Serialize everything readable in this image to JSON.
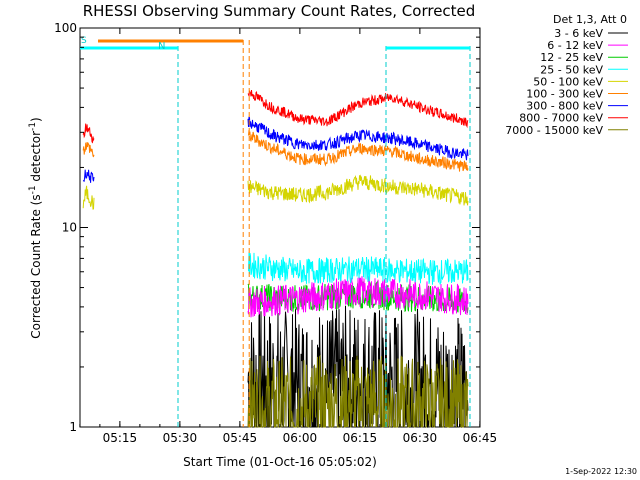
{
  "chart_data": {
    "type": "line",
    "title": "RHESSI Observing Summary Count Rates, Corrected",
    "xlabel": "Start Time (01-Oct-16 05:05:02)",
    "ylabel": "Corrected Count Rate (s",
    "ylabel_sup": "-1",
    "ylabel_mid": " detector",
    "ylabel_tail": ")",
    "y_scale": "log",
    "ylim": [
      1,
      100
    ],
    "xlim_minutes": [
      0,
      100
    ],
    "x_ticks": [
      {
        "label": "05:15",
        "minute": 9.97
      },
      {
        "label": "05:30",
        "minute": 24.97
      },
      {
        "label": "05:45",
        "minute": 39.97
      },
      {
        "label": "06:00",
        "minute": 54.97
      },
      {
        "label": "06:15",
        "minute": 69.97
      },
      {
        "label": "06:30",
        "minute": 84.97
      },
      {
        "label": "06:45",
        "minute": 99.97
      }
    ],
    "y_ticks": [
      {
        "label": "1",
        "value": 1
      },
      {
        "label": "10",
        "value": 10
      },
      {
        "label": "100",
        "value": 100
      }
    ],
    "legend_header": "Det 1,3, Att 0",
    "legend_placement": "top-right outside",
    "series": [
      {
        "name": "3 - 6 keV",
        "color": "#000000",
        "segments": [
          {
            "x": [
              42,
              55,
              70,
              85,
              97
            ],
            "y": [
              1.7,
              1.6,
              1.7,
              1.6,
              1.5
            ]
          }
        ]
      },
      {
        "name": "6 - 12 keV",
        "color": "#ff00ff",
        "segments": [
          {
            "x": [
              42,
              55,
              70,
              85,
              97
            ],
            "y": [
              4.2,
              4.4,
              4.8,
              4.6,
              4.3
            ]
          }
        ]
      },
      {
        "name": "12 - 25 keV",
        "color": "#00cc00",
        "segments": [
          {
            "x": [
              42,
              55,
              70,
              85,
              97
            ],
            "y": [
              4.5,
              4.4,
              4.6,
              4.4,
              4.2
            ]
          }
        ]
      },
      {
        "name": "25 - 50 keV",
        "color": "#00ffff",
        "segments": [
          {
            "x": [
              42,
              55,
              70,
              85,
              97
            ],
            "y": [
              6.5,
              6.0,
              6.2,
              6.0,
              6.0
            ]
          }
        ]
      },
      {
        "name": "50 - 100 keV",
        "color": "#d4d400",
        "segments": [
          {
            "x": [
              0.8,
              1.5,
              2.5,
              3.5
            ],
            "y": [
              13,
              15,
              14,
              13
            ]
          },
          {
            "x": [
              42,
              48,
              55,
              62,
              70,
              78,
              85,
              92,
              97
            ],
            "y": [
              16,
              15,
              14.5,
              15,
              17,
              16,
              15.5,
              14.5,
              14
            ]
          }
        ]
      },
      {
        "name": "100 - 300 keV",
        "color": "#ff8000",
        "segments": [
          {
            "x": [
              0.8,
              1.5,
              2.5,
              3.5
            ],
            "y": [
              24,
              26,
              25,
              23
            ]
          },
          {
            "x": [
              42,
              48,
              55,
              62,
              70,
              78,
              85,
              92,
              97
            ],
            "y": [
              29,
              25,
              22,
              22,
              25,
              24,
              22,
              21,
              20
            ]
          }
        ]
      },
      {
        "name": "300 - 800 keV",
        "color": "#0000ff",
        "segments": [
          {
            "x": [
              0.8,
              1.5,
              2.5,
              3.5
            ],
            "y": [
              17,
              19,
              18,
              17
            ]
          },
          {
            "x": [
              42,
              48,
              55,
              62,
              70,
              78,
              85,
              92,
              97
            ],
            "y": [
              34,
              29,
              26,
              26,
              29,
              28,
              26,
              24,
              23
            ]
          }
        ]
      },
      {
        "name": "800 - 7000 keV",
        "color": "#ff0000",
        "segments": [
          {
            "x": [
              0.8,
              1.5,
              2.5,
              3.5
            ],
            "y": [
              28,
              32,
              30,
              27
            ]
          },
          {
            "x": [
              42,
              48,
              55,
              62,
              70,
              78,
              85,
              92,
              97
            ],
            "y": [
              48,
              40,
              35,
              34,
              42,
              45,
              40,
              36,
              34
            ]
          }
        ]
      },
      {
        "name": "7000 - 15000 keV",
        "color": "#808000",
        "segments": [
          {
            "x": [
              42,
              55,
              70,
              85,
              97
            ],
            "y": [
              1.25,
              1.25,
              1.3,
              1.25,
              1.2
            ]
          }
        ]
      }
    ],
    "annotations": {
      "cyan_marker_label": "N",
      "cyan_marker_left": "S",
      "cyan_vlines_minutes": [
        24.5,
        76.5,
        97.5
      ],
      "orange_vlines_minutes": [
        40.8,
        42.3
      ],
      "saa_bar_minutes": [
        4.5,
        40.8
      ],
      "night_bar_minutes": [
        -2,
        24.5
      ],
      "night_bar2_minutes": [
        76.5,
        97.5
      ]
    },
    "grid": false
  },
  "footer": {
    "date_stamp": "1-Sep-2022 12:30"
  }
}
